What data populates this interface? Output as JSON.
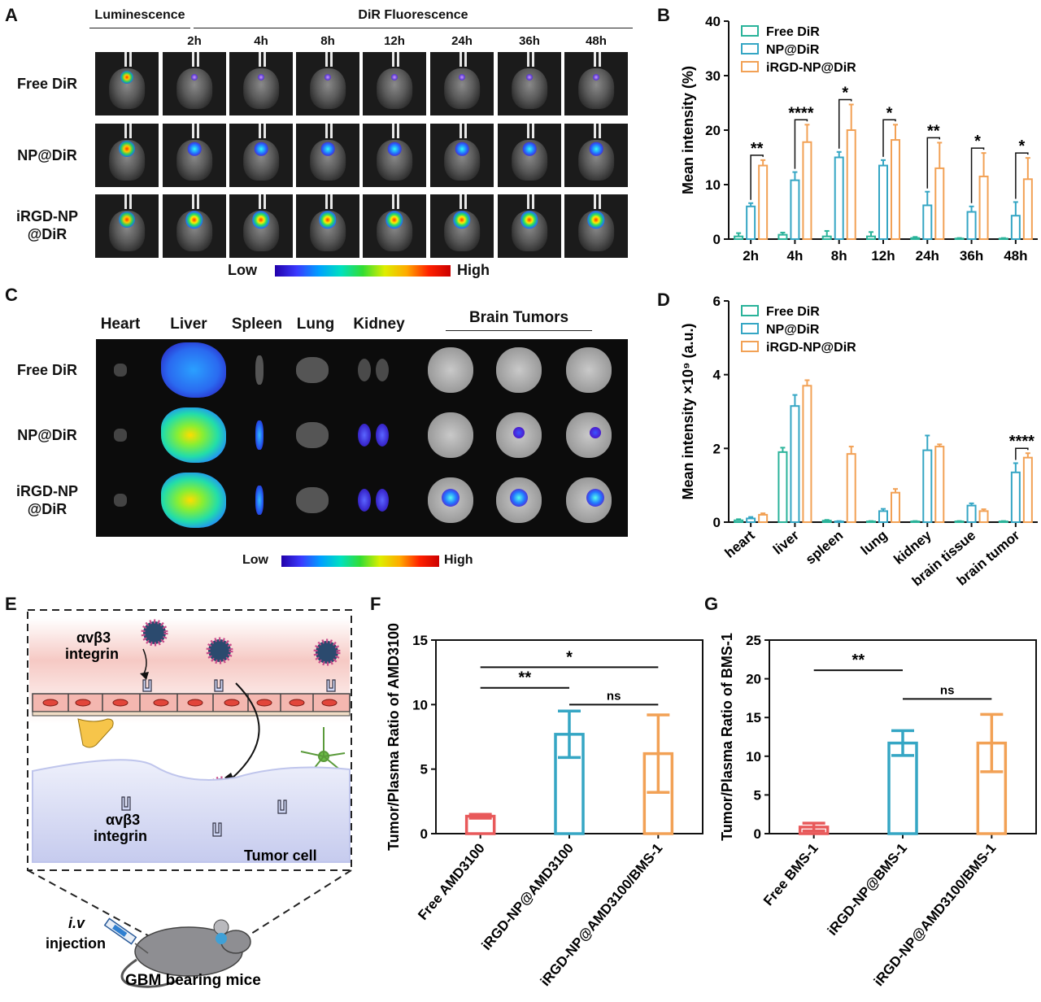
{
  "panels": {
    "A": {
      "letter": "A",
      "header_luminescence": "Luminescence",
      "header_fluorescence": "DiR Fluorescence",
      "timepoints": [
        "2h",
        "4h",
        "8h",
        "12h",
        "24h",
        "36h",
        "48h"
      ],
      "rows": [
        "Free DiR",
        "NP@DiR",
        "iRGD-NP\n@DiR"
      ],
      "scale_low": "Low",
      "scale_high": "High"
    },
    "B": {
      "letter": "B"
    },
    "C": {
      "letter": "C",
      "organs": [
        "Heart",
        "Liver",
        "Spleen",
        "Lung",
        "Kidney"
      ],
      "brain_header": "Brain Tumors",
      "rows": [
        "Free DiR",
        "NP@DiR",
        "iRGD-NP\n@DiR"
      ],
      "scale_low": "Low",
      "scale_high": "High"
    },
    "D": {
      "letter": "D"
    },
    "E": {
      "letter": "E",
      "integrin_top_1": "αvβ3",
      "integrin_top_2": "integrin",
      "integrin_bot_1": "αvβ3",
      "integrin_bot_2": "integrin",
      "tumor_cell": "Tumor cell",
      "iv": "i.v",
      "injection": "injection",
      "mice": "GBM bearing mice"
    },
    "F": {
      "letter": "F"
    },
    "G": {
      "letter": "G"
    }
  },
  "chart_data": [
    {
      "panel": "B",
      "type": "bar",
      "categories": [
        "2h",
        "4h",
        "8h",
        "12h",
        "24h",
        "36h",
        "48h"
      ],
      "ylabel": "Mean intensity (%)",
      "ylim": [
        0,
        40
      ],
      "yticks": [
        0,
        10,
        20,
        30,
        40
      ],
      "legend": "top-left",
      "series": [
        {
          "name": "Free DiR",
          "color": "#2ab39a",
          "values": [
            0.5,
            0.8,
            0.5,
            0.5,
            0.2,
            0.1,
            0.1
          ],
          "errors": [
            0.6,
            0.4,
            1.0,
            0.8,
            0.2,
            0.1,
            0.1
          ]
        },
        {
          "name": "NP@DiR",
          "color": "#35a6c4",
          "values": [
            6.0,
            10.8,
            15.0,
            13.5,
            6.2,
            5.0,
            4.3
          ],
          "errors": [
            0.6,
            1.5,
            1.0,
            1.0,
            2.5,
            1.0,
            2.5
          ]
        },
        {
          "name": "iRGD-NP@DiR",
          "color": "#f2a155",
          "values": [
            13.5,
            17.8,
            20.0,
            18.2,
            13.0,
            11.5,
            11.0
          ],
          "errors": [
            1.0,
            3.2,
            4.7,
            2.8,
            4.7,
            4.3,
            3.9
          ]
        }
      ],
      "significance": [
        "**",
        "****",
        "*",
        "*",
        "**",
        "*",
        "*"
      ]
    },
    {
      "panel": "D",
      "type": "bar",
      "categories": [
        "heart",
        "liver",
        "spleen",
        "lung",
        "kidney",
        "brain tissue",
        "brain tumor"
      ],
      "ylabel": "Mean intensity ×10⁹ (a.u.)",
      "ylim": [
        0,
        6
      ],
      "yticks": [
        0,
        2,
        4,
        6
      ],
      "legend": "top-left",
      "series": [
        {
          "name": "Free DiR",
          "color": "#2ab39a",
          "values": [
            0.05,
            1.9,
            0.04,
            0.02,
            0.02,
            0.02,
            0.02
          ],
          "errors": [
            0.03,
            0.12,
            0.02,
            0.01,
            0.01,
            0.01,
            0.01
          ]
        },
        {
          "name": "NP@DiR",
          "color": "#35a6c4",
          "values": [
            0.1,
            3.15,
            0.02,
            0.3,
            1.95,
            0.45,
            1.35
          ],
          "errors": [
            0.04,
            0.3,
            0.01,
            0.06,
            0.4,
            0.06,
            0.25
          ]
        },
        {
          "name": "iRGD-NP@DiR",
          "color": "#f2a155",
          "values": [
            0.2,
            3.7,
            1.85,
            0.8,
            2.05,
            0.3,
            1.75
          ],
          "errors": [
            0.04,
            0.15,
            0.2,
            0.1,
            0.06,
            0.05,
            0.12
          ]
        }
      ],
      "significance": [
        "",
        "",
        "",
        "",
        "",
        "",
        "****"
      ]
    },
    {
      "panel": "F",
      "type": "bar",
      "categories": [
        "Free AMD3100",
        "iRGD-NP@AMD3100",
        "iRGD-NP@AMD3100/BMS-1"
      ],
      "ylabel": "Tumor/Plasma Ratio of AMD3100",
      "ylim": [
        0,
        15
      ],
      "yticks": [
        0,
        5,
        10,
        15
      ],
      "colors": [
        "#e8595a",
        "#35a6c4",
        "#f2a155"
      ],
      "values": [
        1.35,
        7.7,
        6.2
      ],
      "errors": [
        0.15,
        1.8,
        3.0
      ],
      "comparisons": [
        {
          "from": 0,
          "to": 1,
          "label": "**"
        },
        {
          "from": 0,
          "to": 2,
          "label": "*"
        },
        {
          "from": 1,
          "to": 2,
          "label": "ns"
        }
      ]
    },
    {
      "panel": "G",
      "type": "bar",
      "categories": [
        "Free BMS-1",
        "iRGD-NP@BMS-1",
        "iRGD-NP@AMD3100/BMS-1"
      ],
      "ylabel": "Tumor/Plasma Ratio of BMS-1",
      "ylim": [
        0,
        25
      ],
      "yticks": [
        0,
        5,
        10,
        15,
        20,
        25
      ],
      "colors": [
        "#e8595a",
        "#35a6c4",
        "#f2a155"
      ],
      "values": [
        0.85,
        11.7,
        11.7
      ],
      "errors": [
        0.5,
        1.6,
        3.7
      ],
      "comparisons": [
        {
          "from": 0,
          "to": 1,
          "label": "**"
        },
        {
          "from": 1,
          "to": 2,
          "label": "ns"
        }
      ]
    }
  ]
}
